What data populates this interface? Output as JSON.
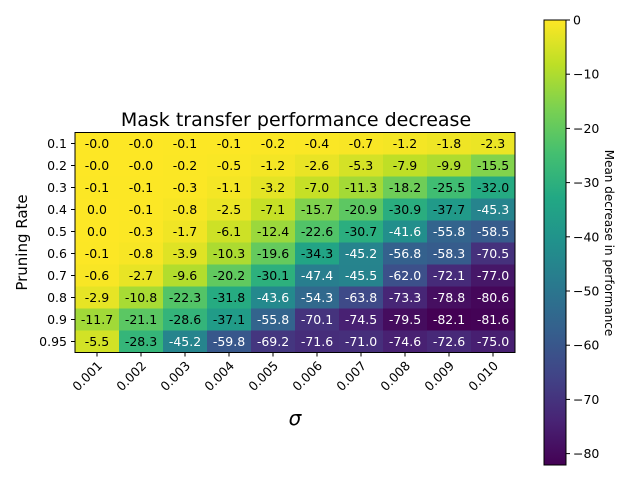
{
  "chart_data": {
    "type": "heatmap",
    "title": "Mask transfer performance decrease",
    "xlabel": "σ",
    "ylabel": "Pruning Rate",
    "colorbar_label": "Mean decrease in performance",
    "colormap": "viridis",
    "clim": [
      -82.1,
      0.0
    ],
    "colorbar_ticks": [
      "0",
      "−10",
      "−20",
      "−30",
      "−40",
      "−50",
      "−60",
      "−70",
      "−80"
    ],
    "colorbar_tick_values": [
      0,
      -10,
      -20,
      -30,
      -40,
      -50,
      -60,
      -70,
      -80
    ],
    "x_categories": [
      "0.001",
      "0.002",
      "0.003",
      "0.004",
      "0.005",
      "0.006",
      "0.007",
      "0.008",
      "0.009",
      "0.010"
    ],
    "y_categories": [
      "0.1",
      "0.2",
      "0.3",
      "0.4",
      "0.5",
      "0.6",
      "0.7",
      "0.8",
      "0.9",
      "0.95"
    ],
    "value_labels": [
      [
        "-0.0",
        "-0.0",
        "-0.1",
        "-0.1",
        "-0.2",
        "-0.4",
        "-0.7",
        "-1.2",
        "-1.8",
        "-2.3"
      ],
      [
        "-0.0",
        "-0.0",
        "-0.2",
        "-0.5",
        "-1.2",
        "-2.6",
        "-5.3",
        "-7.9",
        "-9.9",
        "-15.5"
      ],
      [
        "-0.1",
        "-0.1",
        "-0.3",
        "-1.1",
        "-3.2",
        "-7.0",
        "-11.3",
        "-18.2",
        "-25.5",
        "-32.0"
      ],
      [
        "0.0",
        "-0.1",
        "-0.8",
        "-2.5",
        "-7.1",
        "-15.7",
        "-20.9",
        "-30.9",
        "-37.7",
        "-45.3"
      ],
      [
        "0.0",
        "-0.3",
        "-1.7",
        "-6.1",
        "-12.4",
        "-22.6",
        "-30.7",
        "-41.6",
        "-55.8",
        "-58.5"
      ],
      [
        "-0.1",
        "-0.8",
        "-3.9",
        "-10.3",
        "-19.6",
        "-34.3",
        "-45.2",
        "-56.8",
        "-58.3",
        "-70.5"
      ],
      [
        "-0.6",
        "-2.7",
        "-9.6",
        "-20.2",
        "-30.1",
        "-47.4",
        "-45.5",
        "-62.0",
        "-72.1",
        "-77.0"
      ],
      [
        "-2.9",
        "-10.8",
        "-22.3",
        "-31.8",
        "-43.6",
        "-54.3",
        "-63.8",
        "-73.3",
        "-78.8",
        "-80.6"
      ],
      [
        "-11.7",
        "-21.1",
        "-28.6",
        "-37.1",
        "-55.8",
        "-70.1",
        "-74.5",
        "-79.5",
        "-82.1",
        "-81.6"
      ],
      [
        "-5.5",
        "-28.3",
        "-45.2",
        "-59.8",
        "-69.2",
        "-71.6",
        "-71.0",
        "-74.6",
        "-72.6",
        "-75.0"
      ]
    ]
  }
}
